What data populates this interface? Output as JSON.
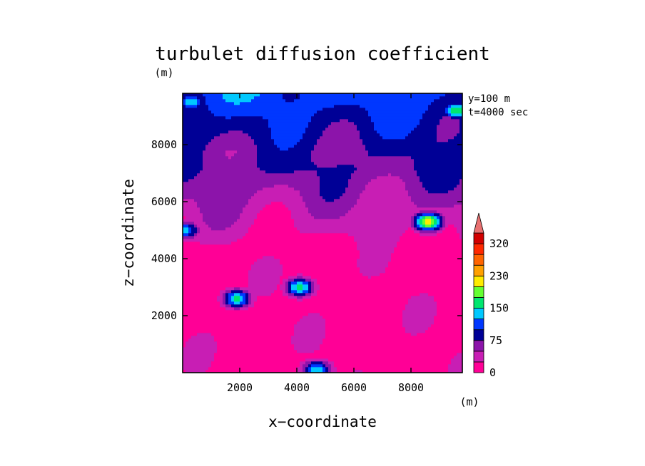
{
  "chart_data": {
    "type": "heatmap",
    "title": "turbulet diffusion coefficient",
    "xlabel": "x−coordinate",
    "ylabel": "z−coordinate",
    "x_unit": "(m)",
    "y_unit": "(m)",
    "info_lines": [
      "y=100 m",
      "t=4000 sec"
    ],
    "xlim": [
      0,
      9800
    ],
    "ylim": [
      0,
      9800
    ],
    "x_ticks": [
      2000,
      4000,
      6000,
      8000
    ],
    "y_ticks": [
      2000,
      4000,
      6000,
      8000
    ],
    "colorbar": {
      "levels": [
        0,
        25,
        50,
        75,
        100,
        125,
        150,
        175,
        200,
        230,
        260,
        290,
        320,
        350
      ],
      "labeled_ticks": [
        0,
        75,
        150,
        230,
        320
      ],
      "colors": [
        "#ff0096",
        "#c81eb4",
        "#8c14aa",
        "#000096",
        "#0037ff",
        "#00c8ff",
        "#00e66e",
        "#64ff32",
        "#ffeb00",
        "#ffa000",
        "#ff6400",
        "#ff2800",
        "#d20000"
      ],
      "overflow_color": "#e87070",
      "extend": "max"
    },
    "field": {
      "description": "estimated smoothed contour field of the coefficient over x and z",
      "background_low": 10,
      "background_high": 45,
      "features": [
        {
          "x": 300,
          "z": 9500,
          "value": 150,
          "note": "top-left cyan/green"
        },
        {
          "x": 9600,
          "z": 9200,
          "value": 170,
          "note": "top-right cyan/green"
        },
        {
          "x": 8600,
          "z": 5300,
          "value": 220,
          "note": "bright blob right"
        },
        {
          "x": 100,
          "z": 5000,
          "value": 130,
          "note": "left edge"
        },
        {
          "x": 4100,
          "z": 3000,
          "value": 165,
          "note": "central green blob"
        },
        {
          "x": 1900,
          "z": 2600,
          "value": 160,
          "note": "small blob"
        },
        {
          "x": 4700,
          "z": 100,
          "value": 150,
          "note": "bottom plume"
        }
      ]
    },
    "grid": false,
    "legend": "colorbar right"
  }
}
